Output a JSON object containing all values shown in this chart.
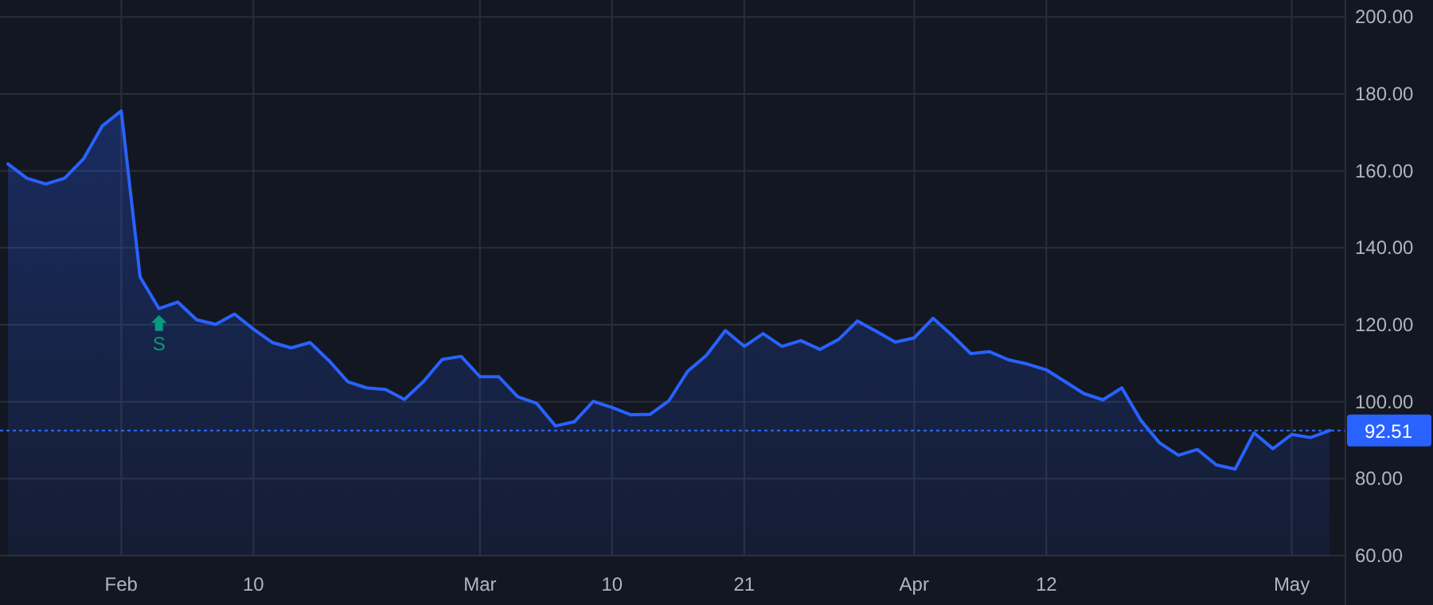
{
  "chart_data": {
    "type": "area",
    "categories": [
      null,
      null,
      null,
      null,
      null,
      null,
      "Feb",
      null,
      null,
      null,
      null,
      null,
      null,
      "10",
      null,
      null,
      null,
      null,
      null,
      null,
      null,
      null,
      null,
      null,
      null,
      "Mar",
      null,
      null,
      null,
      null,
      null,
      null,
      "10",
      null,
      null,
      null,
      null,
      null,
      null,
      "21",
      null,
      null,
      null,
      null,
      null,
      null,
      null,
      null,
      "Apr",
      null,
      null,
      null,
      null,
      null,
      null,
      "12",
      null,
      null,
      null,
      null,
      null,
      null,
      null,
      null,
      null,
      null,
      null,
      null,
      "May",
      null,
      null
    ],
    "series": [
      {
        "color": "#2962ff",
        "values": [
          161.8,
          158.1,
          156.6,
          158.1,
          163.1,
          171.7,
          175.6,
          132.4,
          124.2,
          125.9,
          121.3,
          120.1,
          122.8,
          118.9,
          115.4,
          114.0,
          115.4,
          110.7,
          105.2,
          103.6,
          103.2,
          100.6,
          105.2,
          111.0,
          111.8,
          106.5,
          106.5,
          101.3,
          99.6,
          93.7,
          94.8,
          100.1,
          98.5,
          96.6,
          96.7,
          100.2,
          107.9,
          112.1,
          118.5,
          114.4,
          117.7,
          114.4,
          115.9,
          113.6,
          116.2,
          121.0,
          118.3,
          115.5,
          116.6,
          121.7,
          117.3,
          112.5,
          113.0,
          110.9,
          109.8,
          108.3,
          105.2,
          102.1,
          100.5,
          103.6,
          95.2,
          89.3,
          86.1,
          87.6,
          83.6,
          82.5,
          91.9,
          87.8,
          91.5,
          90.7,
          92.5
        ]
      }
    ],
    "ylim": [
      60,
      204
    ],
    "yticks": [
      {
        "value": 60,
        "label": "60.00"
      },
      {
        "value": 80,
        "label": "80.00"
      },
      {
        "value": 100,
        "label": "100.00"
      },
      {
        "value": 120,
        "label": "120.00"
      },
      {
        "value": 140,
        "label": "140.00"
      },
      {
        "value": 160,
        "label": "160.00"
      },
      {
        "value": 180,
        "label": "180.00"
      },
      {
        "value": 200,
        "label": "200.00"
      }
    ],
    "grid": true,
    "ref_lines": [
      {
        "axis": "y",
        "value": 92.51,
        "label": "92.51",
        "color": "#2962ff",
        "line_style": "dotted"
      }
    ],
    "annotations": [
      {
        "text": "S",
        "y": 124.2
      }
    ]
  }
}
